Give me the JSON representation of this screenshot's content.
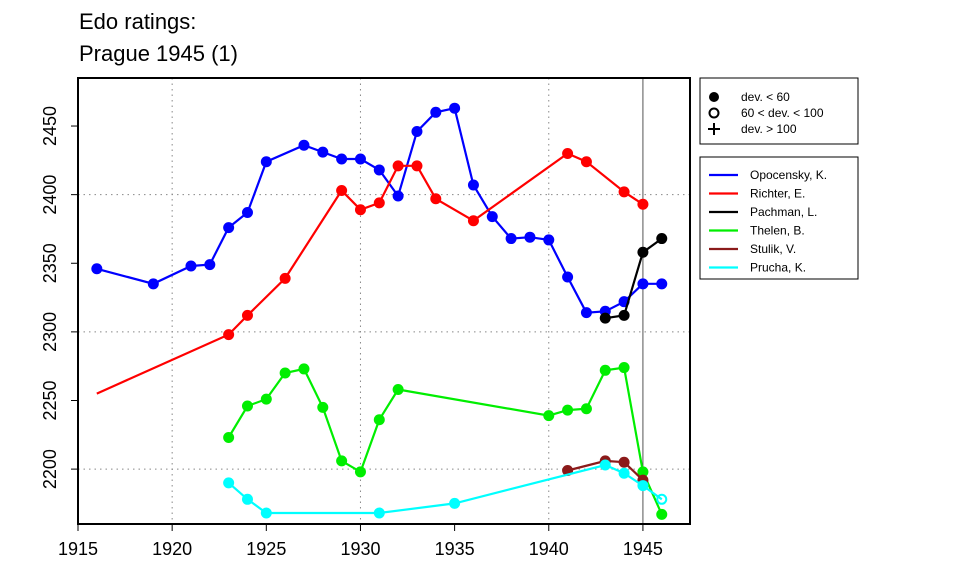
{
  "chart_data": {
    "type": "line",
    "title_lines": [
      "Edo ratings:",
      "Prague 1945 (1)"
    ],
    "xlabel": "",
    "ylabel": "",
    "xlim": [
      1915,
      1947.5
    ],
    "ylim": [
      2160,
      2485
    ],
    "x_ticks": [
      1915,
      1920,
      1925,
      1930,
      1935,
      1940,
      1945
    ],
    "y_ticks": [
      2200,
      2250,
      2300,
      2350,
      2400,
      2450
    ],
    "grid_x": [
      1920,
      1930,
      1940
    ],
    "grid_y": [
      2200,
      2300,
      2400
    ],
    "event_line_x": 1945,
    "deviation_legend": [
      {
        "marker": "filled-circle",
        "label": "dev. < 60"
      },
      {
        "marker": "open-circle",
        "label": "60 < dev. < 100"
      },
      {
        "marker": "plus",
        "label": "dev. > 100"
      }
    ],
    "series": [
      {
        "name": "Opocensky, K.",
        "color": "#0000ff",
        "points": [
          [
            1916,
            2346,
            "filled"
          ],
          [
            1919,
            2335,
            "filled"
          ],
          [
            1921,
            2348,
            "filled"
          ],
          [
            1922,
            2349,
            "filled"
          ],
          [
            1923,
            2376,
            "filled"
          ],
          [
            1924,
            2387,
            "filled"
          ],
          [
            1925,
            2424,
            "filled"
          ],
          [
            1927,
            2436,
            "filled"
          ],
          [
            1928,
            2431,
            "filled"
          ],
          [
            1929,
            2426,
            "filled"
          ],
          [
            1930,
            2426,
            "filled"
          ],
          [
            1931,
            2418,
            "filled"
          ],
          [
            1932,
            2399,
            "filled"
          ],
          [
            1933,
            2446,
            "filled"
          ],
          [
            1934,
            2460,
            "filled"
          ],
          [
            1935,
            2463,
            "filled"
          ],
          [
            1936,
            2407,
            "filled"
          ],
          [
            1937,
            2384,
            "filled"
          ],
          [
            1938,
            2368,
            "filled"
          ],
          [
            1939,
            2369,
            "filled"
          ],
          [
            1940,
            2367,
            "filled"
          ],
          [
            1941,
            2340,
            "filled"
          ],
          [
            1942,
            2314,
            "filled"
          ],
          [
            1943,
            2315,
            "filled"
          ],
          [
            1944,
            2322,
            "filled"
          ],
          [
            1945,
            2335,
            "filled"
          ],
          [
            1946,
            2335,
            "filled"
          ]
        ]
      },
      {
        "name": "Richter, E.",
        "color": "#ff0000",
        "points": [
          [
            1916,
            2255,
            "none"
          ],
          [
            1923,
            2298,
            "filled"
          ],
          [
            1924,
            2312,
            "filled"
          ],
          [
            1926,
            2339,
            "filled"
          ],
          [
            1929,
            2403,
            "filled"
          ],
          [
            1930,
            2389,
            "filled"
          ],
          [
            1931,
            2394,
            "filled"
          ],
          [
            1932,
            2421,
            "filled"
          ],
          [
            1933,
            2421,
            "filled"
          ],
          [
            1934,
            2397,
            "filled"
          ],
          [
            1936,
            2381,
            "filled"
          ],
          [
            1941,
            2430,
            "filled"
          ],
          [
            1942,
            2424,
            "filled"
          ],
          [
            1944,
            2402,
            "filled"
          ],
          [
            1945,
            2393,
            "filled"
          ]
        ]
      },
      {
        "name": "Pachman, L.",
        "color": "#000000",
        "points": [
          [
            1943,
            2310,
            "filled"
          ],
          [
            1944,
            2312,
            "filled"
          ],
          [
            1945,
            2358,
            "filled"
          ],
          [
            1946,
            2368,
            "filled"
          ]
        ]
      },
      {
        "name": "Thelen, B.",
        "color": "#00ee00",
        "points": [
          [
            1923,
            2223,
            "filled"
          ],
          [
            1924,
            2246,
            "filled"
          ],
          [
            1925,
            2251,
            "filled"
          ],
          [
            1926,
            2270,
            "filled"
          ],
          [
            1927,
            2273,
            "filled"
          ],
          [
            1928,
            2245,
            "filled"
          ],
          [
            1929,
            2206,
            "filled"
          ],
          [
            1930,
            2198,
            "filled"
          ],
          [
            1931,
            2236,
            "filled"
          ],
          [
            1932,
            2258,
            "filled"
          ],
          [
            1940,
            2239,
            "filled"
          ],
          [
            1941,
            2243,
            "filled"
          ],
          [
            1942,
            2244,
            "filled"
          ],
          [
            1943,
            2272,
            "filled"
          ],
          [
            1944,
            2274,
            "filled"
          ],
          [
            1945,
            2198,
            "filled"
          ],
          [
            1946,
            2167,
            "filled"
          ]
        ]
      },
      {
        "name": "Stulik, V.",
        "color": "#8b1a1a",
        "points": [
          [
            1941,
            2199,
            "filled"
          ],
          [
            1943,
            2206,
            "filled"
          ],
          [
            1944,
            2205,
            "filled"
          ],
          [
            1945,
            2192,
            "filled"
          ]
        ]
      },
      {
        "name": "Prucha, K.",
        "color": "#00ffff",
        "points": [
          [
            1923,
            2190,
            "filled"
          ],
          [
            1924,
            2178,
            "filled"
          ],
          [
            1925,
            2168,
            "filled"
          ],
          [
            1931,
            2168,
            "filled"
          ],
          [
            1935,
            2175,
            "filled"
          ],
          [
            1943,
            2203,
            "filled"
          ],
          [
            1944,
            2197,
            "filled"
          ],
          [
            1945,
            2188,
            "filled"
          ],
          [
            1946,
            2178,
            "open"
          ]
        ]
      }
    ]
  }
}
